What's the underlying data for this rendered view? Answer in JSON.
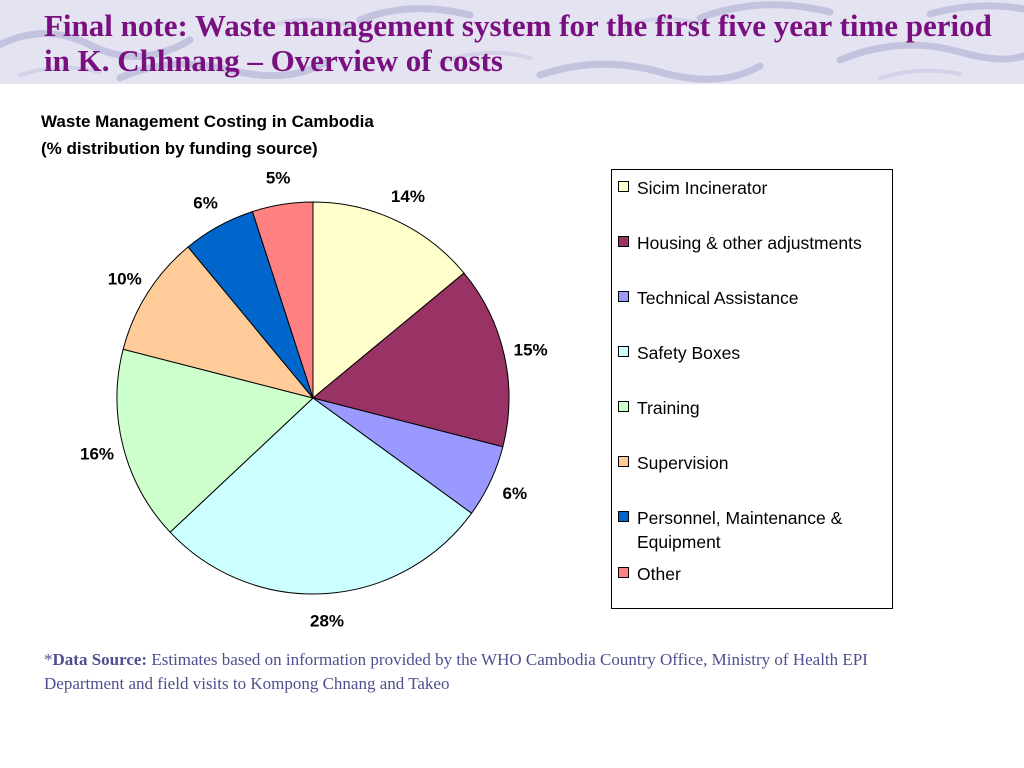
{
  "header": {
    "title": "Final note: Waste management system for the first five year time period in K. Chhnang – Overview of costs"
  },
  "chart_data": {
    "type": "pie",
    "title": "Waste Management Costing in Cambodia",
    "subtitle": "(% distribution by funding source)",
    "legend_position": "right",
    "slices": [
      {
        "label": "Sicim Incinerator",
        "value": 14,
        "display": "14%",
        "color": "#ffffcc"
      },
      {
        "label": "Housing & other adjustments",
        "value": 15,
        "display": "15%",
        "color": "#993366"
      },
      {
        "label": "Technical Assistance",
        "value": 6,
        "display": "6%",
        "color": "#9999ff"
      },
      {
        "label": "Safety Boxes",
        "value": 28,
        "display": "28%",
        "color": "#ccffff"
      },
      {
        "label": "Training",
        "value": 16,
        "display": "16%",
        "color": "#ccffcc"
      },
      {
        "label": "Supervision",
        "value": 10,
        "display": "10%",
        "color": "#ffcc99"
      },
      {
        "label": "Personnel, Maintenance & Equipment",
        "value": 6,
        "display": "6%",
        "color": "#0066cc"
      },
      {
        "label": "Other",
        "value": 5,
        "display": "5%",
        "color": "#ff8080"
      }
    ]
  },
  "source": {
    "prefix": "*",
    "label": "Data Source:",
    "text": " Estimates based on information provided by the WHO Cambodia Country Office, Ministry of Health EPI Department and field visits to Kompong Chnang and Takeo"
  }
}
